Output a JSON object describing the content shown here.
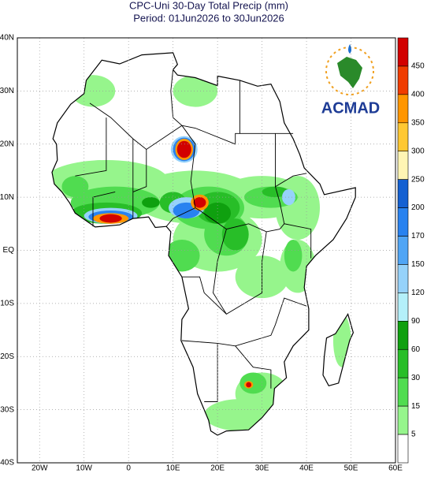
{
  "header": {
    "title": "CPC-Uni 30-Day Total Precip (mm)",
    "period": "Period: 01Jun2026 to 30Jun2026"
  },
  "map": {
    "lat_labels": [
      "40N",
      "30N",
      "20N",
      "10N",
      "EQ",
      "10S",
      "20S",
      "30S",
      "40S"
    ],
    "lon_labels": [
      "20W",
      "10W",
      "0",
      "10E",
      "20E",
      "30E",
      "40E",
      "50E",
      "60E"
    ],
    "logo": "ACMAD"
  },
  "colorbar": {
    "labels": [
      450,
      400,
      350,
      300,
      250,
      200,
      170,
      150,
      120,
      90,
      60,
      30,
      15,
      5
    ],
    "colors": [
      "#d20000",
      "#f03c00",
      "#ff9600",
      "#ffc832",
      "#fff5b4",
      "#1460d2",
      "#2882f0",
      "#50a5f5",
      "#96d2fa",
      "#b4f0fa",
      "#0fa00f",
      "#28be28",
      "#50dc50",
      "#96f58c",
      "#ffffff"
    ]
  }
}
